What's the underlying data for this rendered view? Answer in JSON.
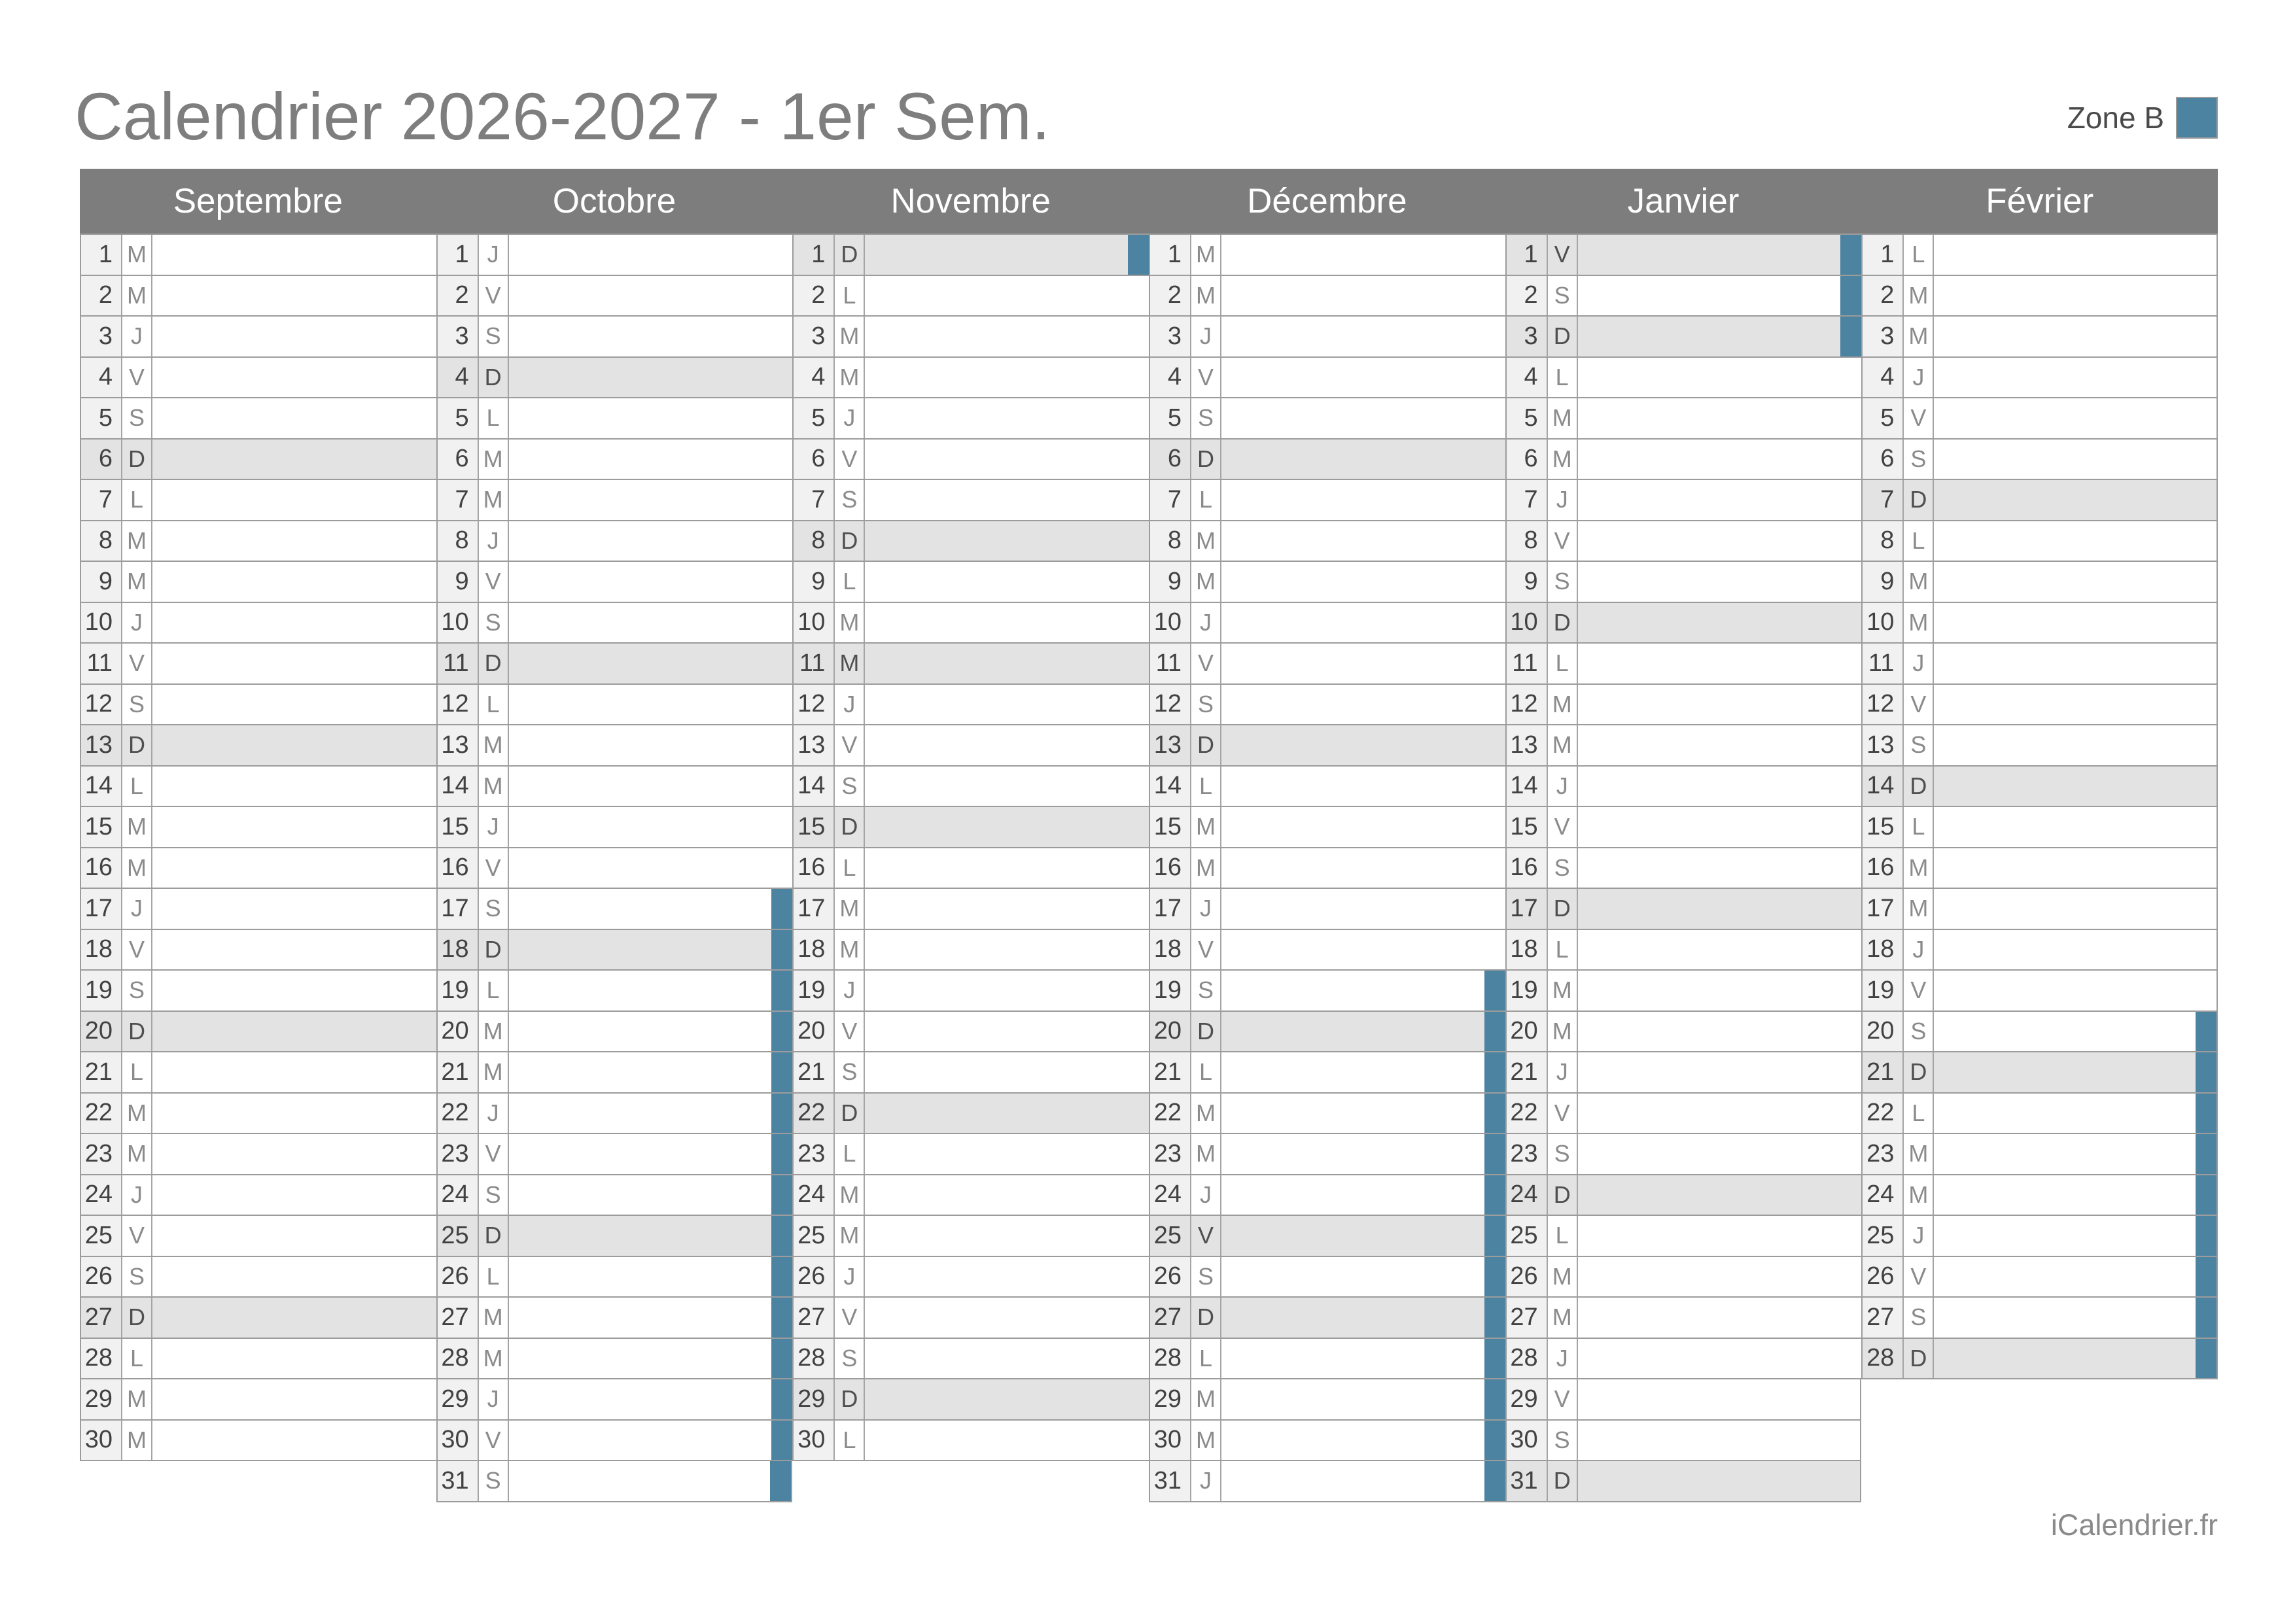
{
  "title": "Calendrier 2026-2027 - 1er Sem.",
  "zone": {
    "label": "Zone B",
    "color": "#4c83a1"
  },
  "footer": "iCalendrier.fr",
  "colors": {
    "header_bg": "#7d7d7d",
    "title_text": "#7e7e7e",
    "highlight_row": "#e3e3e3",
    "number_cell_bg": "#f1f1f1",
    "vacation_bar": "#4c83a1",
    "grid_border": "#9c9c9c"
  },
  "months": [
    {
      "name": "Septembre",
      "days": [
        [
          1,
          "M"
        ],
        [
          2,
          "M"
        ],
        [
          3,
          "J"
        ],
        [
          4,
          "V"
        ],
        [
          5,
          "S"
        ],
        [
          6,
          "D"
        ],
        [
          7,
          "L"
        ],
        [
          8,
          "M"
        ],
        [
          9,
          "M"
        ],
        [
          10,
          "J"
        ],
        [
          11,
          "V"
        ],
        [
          12,
          "S"
        ],
        [
          13,
          "D"
        ],
        [
          14,
          "L"
        ],
        [
          15,
          "M"
        ],
        [
          16,
          "M"
        ],
        [
          17,
          "J"
        ],
        [
          18,
          "V"
        ],
        [
          19,
          "S"
        ],
        [
          20,
          "D"
        ],
        [
          21,
          "L"
        ],
        [
          22,
          "M"
        ],
        [
          23,
          "M"
        ],
        [
          24,
          "J"
        ],
        [
          25,
          "V"
        ],
        [
          26,
          "S"
        ],
        [
          27,
          "D"
        ],
        [
          28,
          "L"
        ],
        [
          29,
          "M"
        ],
        [
          30,
          "M"
        ]
      ],
      "highlighted": [
        6,
        13,
        20,
        27
      ],
      "vacation_ranges": []
    },
    {
      "name": "Octobre",
      "days": [
        [
          1,
          "J"
        ],
        [
          2,
          "V"
        ],
        [
          3,
          "S"
        ],
        [
          4,
          "D"
        ],
        [
          5,
          "L"
        ],
        [
          6,
          "M"
        ],
        [
          7,
          "M"
        ],
        [
          8,
          "J"
        ],
        [
          9,
          "V"
        ],
        [
          10,
          "S"
        ],
        [
          11,
          "D"
        ],
        [
          12,
          "L"
        ],
        [
          13,
          "M"
        ],
        [
          14,
          "M"
        ],
        [
          15,
          "J"
        ],
        [
          16,
          "V"
        ],
        [
          17,
          "S"
        ],
        [
          18,
          "D"
        ],
        [
          19,
          "L"
        ],
        [
          20,
          "M"
        ],
        [
          21,
          "M"
        ],
        [
          22,
          "J"
        ],
        [
          23,
          "V"
        ],
        [
          24,
          "S"
        ],
        [
          25,
          "D"
        ],
        [
          26,
          "L"
        ],
        [
          27,
          "M"
        ],
        [
          28,
          "M"
        ],
        [
          29,
          "J"
        ],
        [
          30,
          "V"
        ],
        [
          31,
          "S"
        ]
      ],
      "highlighted": [
        4,
        11,
        18,
        25
      ],
      "vacation_ranges": [
        [
          17,
          31
        ]
      ]
    },
    {
      "name": "Novembre",
      "days": [
        [
          1,
          "D"
        ],
        [
          2,
          "L"
        ],
        [
          3,
          "M"
        ],
        [
          4,
          "M"
        ],
        [
          5,
          "J"
        ],
        [
          6,
          "V"
        ],
        [
          7,
          "S"
        ],
        [
          8,
          "D"
        ],
        [
          9,
          "L"
        ],
        [
          10,
          "M"
        ],
        [
          11,
          "M"
        ],
        [
          12,
          "J"
        ],
        [
          13,
          "V"
        ],
        [
          14,
          "S"
        ],
        [
          15,
          "D"
        ],
        [
          16,
          "L"
        ],
        [
          17,
          "M"
        ],
        [
          18,
          "M"
        ],
        [
          19,
          "J"
        ],
        [
          20,
          "V"
        ],
        [
          21,
          "S"
        ],
        [
          22,
          "D"
        ],
        [
          23,
          "L"
        ],
        [
          24,
          "M"
        ],
        [
          25,
          "M"
        ],
        [
          26,
          "J"
        ],
        [
          27,
          "V"
        ],
        [
          28,
          "S"
        ],
        [
          29,
          "D"
        ],
        [
          30,
          "L"
        ]
      ],
      "highlighted": [
        1,
        8,
        11,
        15,
        22,
        29
      ],
      "vacation_ranges": [
        [
          1,
          1
        ]
      ]
    },
    {
      "name": "Décembre",
      "days": [
        [
          1,
          "M"
        ],
        [
          2,
          "M"
        ],
        [
          3,
          "J"
        ],
        [
          4,
          "V"
        ],
        [
          5,
          "S"
        ],
        [
          6,
          "D"
        ],
        [
          7,
          "L"
        ],
        [
          8,
          "M"
        ],
        [
          9,
          "M"
        ],
        [
          10,
          "J"
        ],
        [
          11,
          "V"
        ],
        [
          12,
          "S"
        ],
        [
          13,
          "D"
        ],
        [
          14,
          "L"
        ],
        [
          15,
          "M"
        ],
        [
          16,
          "M"
        ],
        [
          17,
          "J"
        ],
        [
          18,
          "V"
        ],
        [
          19,
          "S"
        ],
        [
          20,
          "D"
        ],
        [
          21,
          "L"
        ],
        [
          22,
          "M"
        ],
        [
          23,
          "M"
        ],
        [
          24,
          "J"
        ],
        [
          25,
          "V"
        ],
        [
          26,
          "S"
        ],
        [
          27,
          "D"
        ],
        [
          28,
          "L"
        ],
        [
          29,
          "M"
        ],
        [
          30,
          "M"
        ],
        [
          31,
          "J"
        ]
      ],
      "highlighted": [
        6,
        13,
        20,
        25,
        27
      ],
      "vacation_ranges": [
        [
          19,
          31
        ]
      ]
    },
    {
      "name": "Janvier",
      "days": [
        [
          1,
          "V"
        ],
        [
          2,
          "S"
        ],
        [
          3,
          "D"
        ],
        [
          4,
          "L"
        ],
        [
          5,
          "M"
        ],
        [
          6,
          "M"
        ],
        [
          7,
          "J"
        ],
        [
          8,
          "V"
        ],
        [
          9,
          "S"
        ],
        [
          10,
          "D"
        ],
        [
          11,
          "L"
        ],
        [
          12,
          "M"
        ],
        [
          13,
          "M"
        ],
        [
          14,
          "J"
        ],
        [
          15,
          "V"
        ],
        [
          16,
          "S"
        ],
        [
          17,
          "D"
        ],
        [
          18,
          "L"
        ],
        [
          19,
          "M"
        ],
        [
          20,
          "M"
        ],
        [
          21,
          "J"
        ],
        [
          22,
          "V"
        ],
        [
          23,
          "S"
        ],
        [
          24,
          "D"
        ],
        [
          25,
          "L"
        ],
        [
          26,
          "M"
        ],
        [
          27,
          "M"
        ],
        [
          28,
          "J"
        ],
        [
          29,
          "V"
        ],
        [
          30,
          "S"
        ],
        [
          31,
          "D"
        ]
      ],
      "highlighted": [
        1,
        3,
        10,
        17,
        24,
        31
      ],
      "vacation_ranges": [
        [
          1,
          3
        ]
      ]
    },
    {
      "name": "Février",
      "days": [
        [
          1,
          "L"
        ],
        [
          2,
          "M"
        ],
        [
          3,
          "M"
        ],
        [
          4,
          "J"
        ],
        [
          5,
          "V"
        ],
        [
          6,
          "S"
        ],
        [
          7,
          "D"
        ],
        [
          8,
          "L"
        ],
        [
          9,
          "M"
        ],
        [
          10,
          "M"
        ],
        [
          11,
          "J"
        ],
        [
          12,
          "V"
        ],
        [
          13,
          "S"
        ],
        [
          14,
          "D"
        ],
        [
          15,
          "L"
        ],
        [
          16,
          "M"
        ],
        [
          17,
          "M"
        ],
        [
          18,
          "J"
        ],
        [
          19,
          "V"
        ],
        [
          20,
          "S"
        ],
        [
          21,
          "D"
        ],
        [
          22,
          "L"
        ],
        [
          23,
          "M"
        ],
        [
          24,
          "M"
        ],
        [
          25,
          "J"
        ],
        [
          26,
          "V"
        ],
        [
          27,
          "S"
        ],
        [
          28,
          "D"
        ]
      ],
      "highlighted": [
        7,
        14,
        21,
        28
      ],
      "vacation_ranges": [
        [
          20,
          28
        ]
      ]
    }
  ]
}
